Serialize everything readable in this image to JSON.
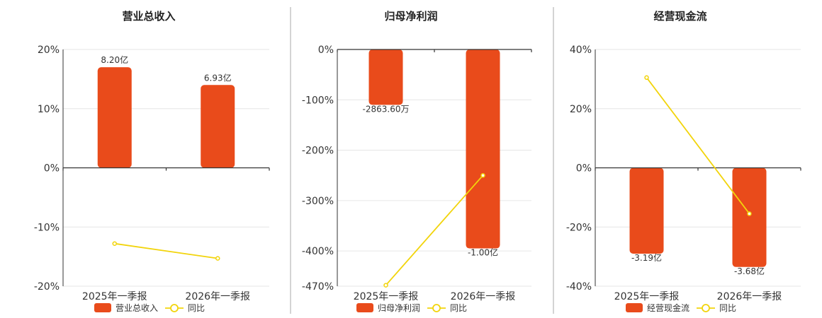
{
  "colors": {
    "bar": "#e94b1b",
    "line": "#f2d40b",
    "divider": "#aaaaaa"
  },
  "chart_data": [
    {
      "type": "bar",
      "title": "营业总收入",
      "categories": [
        "2025年一季报",
        "2026年一季报"
      ],
      "series": [
        {
          "name": "营业总收入",
          "type": "bar",
          "values": [
            17,
            14
          ],
          "labels": [
            "8.20亿",
            "6.93亿"
          ]
        },
        {
          "name": "同比",
          "type": "line",
          "values": [
            -12.8,
            -15.3
          ]
        }
      ],
      "yticks": [
        20,
        10,
        0,
        -10,
        -20
      ],
      "ytick_labels": [
        "20%",
        "10%",
        "0%",
        "-10%",
        "-20%"
      ],
      "ylim": [
        -20,
        20
      ],
      "grid": true,
      "legend": "bottom-center"
    },
    {
      "type": "bar",
      "title": "归母净利润",
      "categories": [
        "2025年一季报",
        "2026年一季报"
      ],
      "series": [
        {
          "name": "归母净利润",
          "type": "bar",
          "values": [
            -110,
            -395
          ],
          "labels": [
            "-2863.60万",
            "-1.00亿"
          ]
        },
        {
          "name": "同比",
          "type": "line",
          "values": [
            -468,
            -250
          ]
        }
      ],
      "yticks": [
        0,
        -100,
        -200,
        -300,
        -400,
        -470
      ],
      "ytick_labels": [
        "0%",
        "-100%",
        "-200%",
        "-300%",
        "-400%",
        "-470%"
      ],
      "ylim": [
        -470,
        0
      ],
      "grid": true,
      "legend": "bottom-center"
    },
    {
      "type": "bar",
      "title": "经营现金流",
      "categories": [
        "2025年一季报",
        "2026年一季报"
      ],
      "series": [
        {
          "name": "经营现金流",
          "type": "bar",
          "values": [
            -29,
            -33.5
          ],
          "labels": [
            "-3.19亿",
            "-3.68亿"
          ]
        },
        {
          "name": "同比",
          "type": "line",
          "values": [
            30.5,
            -15.5
          ]
        }
      ],
      "yticks": [
        40,
        20,
        0,
        -20,
        -40
      ],
      "ytick_labels": [
        "40%",
        "20%",
        "0%",
        "-20%",
        "-40%"
      ],
      "ylim": [
        -40,
        40
      ],
      "grid": true,
      "legend": "bottom-center"
    }
  ]
}
